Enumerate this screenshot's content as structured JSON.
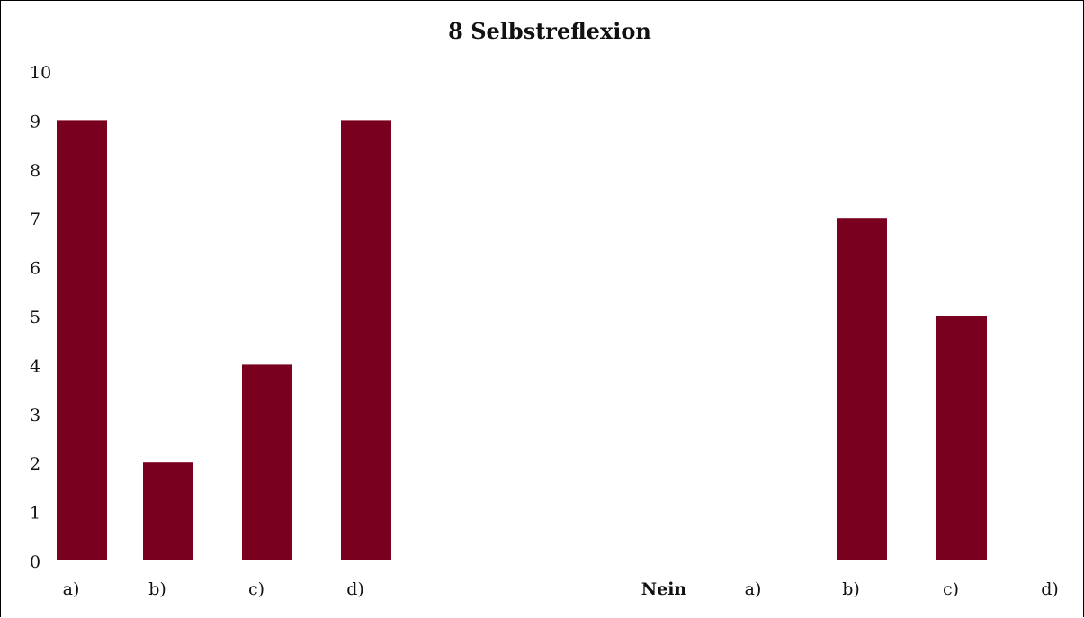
{
  "chart_data": {
    "type": "bar",
    "title": "8 Selbstreflexion",
    "xlabel": "",
    "ylabel": "",
    "ylim": [
      0,
      10
    ],
    "yticks": [
      "0",
      "1",
      "2",
      "3",
      "4",
      "5",
      "6",
      "7",
      "8",
      "9",
      "10"
    ],
    "grid": false,
    "groups": [
      {
        "label": "",
        "categories": [
          "a)",
          "b)",
          "c)",
          "d)"
        ],
        "values": [
          9,
          2,
          4,
          9
        ]
      },
      {
        "label": "Nein",
        "categories": [
          "a)",
          "b)",
          "c)",
          "d)"
        ],
        "values": [
          0,
          7,
          5,
          0
        ]
      }
    ],
    "bar_color": "#7a0020"
  }
}
